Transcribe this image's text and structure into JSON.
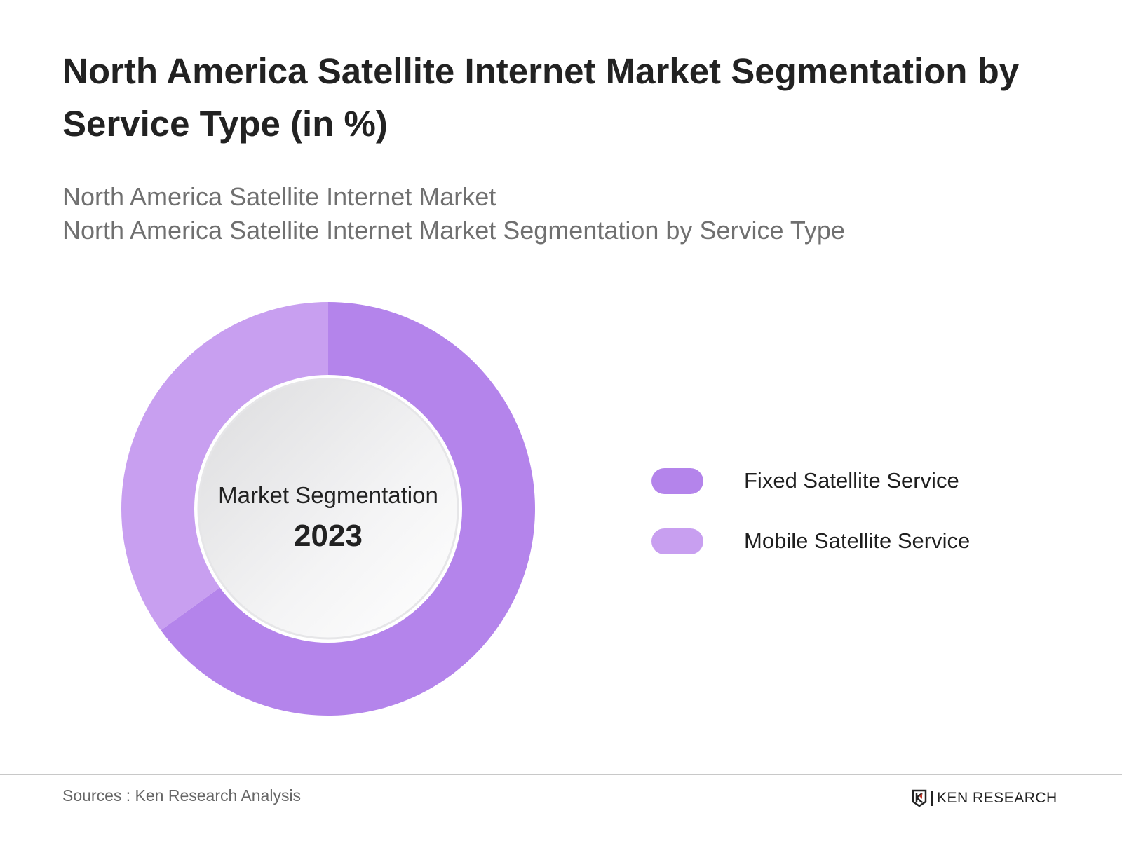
{
  "title": "North America Satellite Internet Market Segmentation by Service Type (in %)",
  "subtitle_lines": [
    "North America Satellite Internet Market",
    "North America Satellite Internet Market Segmentation by Service Type"
  ],
  "chart_data": {
    "type": "pie",
    "variant": "donut",
    "center_label": "Market Segmentation",
    "center_value": "2023",
    "categories": [
      "Fixed Satellite Service",
      "Mobile Satellite Service"
    ],
    "values": [
      65,
      35
    ],
    "colors": [
      "#b484eb",
      "#c89ff0"
    ],
    "legend_position": "right"
  },
  "footer": {
    "source": "Sources : Ken Research Analysis",
    "logo_text": "KEN RESEARCH"
  }
}
